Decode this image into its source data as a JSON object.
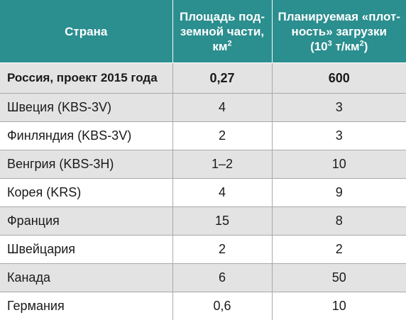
{
  "header": {
    "country": "Страна",
    "area_line1": "Площадь под-",
    "area_line2": "земной части,",
    "area_line3_text": "км",
    "area_line3_sup": "2",
    "density_line1": "Планируемая «плот-",
    "density_line2": "ность» загрузки",
    "density_line3_open": "(10",
    "density_line3_sup1": "3",
    "density_line3_mid": " т/км",
    "density_line3_sup2": "2",
    "density_line3_close": ")"
  },
  "rows": [
    {
      "country": "Россия, проект 2015 года",
      "area": "0,27",
      "density": "600"
    },
    {
      "country": "Швеция (KBS-3V)",
      "area": "4",
      "density": "3"
    },
    {
      "country": "Финляндия (KBS-3V)",
      "area": "2",
      "density": "3"
    },
    {
      "country": "Венгрия (KBS-3H)",
      "area": "1–2",
      "density": "10"
    },
    {
      "country": "Корея (KRS)",
      "area": "4",
      "density": "9"
    },
    {
      "country": "Франция",
      "area": "15",
      "density": "8"
    },
    {
      "country": "Швейцария",
      "area": "2",
      "density": "2"
    },
    {
      "country": "Канада",
      "area": "6",
      "density": "50"
    },
    {
      "country": "Германия",
      "area": "0,6",
      "density": "10"
    }
  ]
}
